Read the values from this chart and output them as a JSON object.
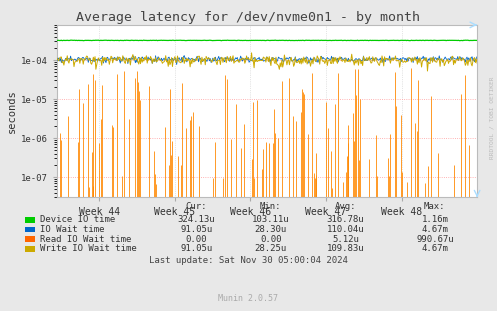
{
  "title": "Average latency for /dev/nvme0n1 - by month",
  "ylabel": "seconds",
  "bg_color": "#e8e8e8",
  "plot_bg_color": "#ffffff",
  "rrdtool_label": "RRDTOOL / TOBI OETIKER",
  "munin_label": "Munin 2.0.57",
  "xticklabels": [
    "Week 44",
    "Week 45",
    "Week 46",
    "Week 47",
    "Week 48"
  ],
  "ytick_labels": [
    "1e-07",
    "1e-06",
    "1e-05",
    "1e-04"
  ],
  "ytick_values": [
    1e-07,
    1e-06,
    1e-05,
    0.0001
  ],
  "legend": [
    {
      "label": "Device IO time",
      "color": "#00cc00"
    },
    {
      "label": "IO Wait time",
      "color": "#0066cc"
    },
    {
      "label": "Read IO Wait time",
      "color": "#ff6600"
    },
    {
      "label": "Write IO Wait time",
      "color": "#ccaa00"
    }
  ],
  "legend_stats": [
    {
      "cur": "324.13u",
      "min": "103.11u",
      "avg": "316.78u",
      "max": "1.16m"
    },
    {
      "cur": "91.05u",
      "min": "28.30u",
      "avg": "110.04u",
      "max": "4.67m"
    },
    {
      "cur": "0.00",
      "min": "0.00",
      "avg": "5.12u",
      "max": "990.67u"
    },
    {
      "cur": "91.05u",
      "min": "28.25u",
      "avg": "109.83u",
      "max": "4.67m"
    }
  ],
  "last_update": "Last update: Sat Nov 30 05:00:04 2024",
  "device_io_level": 0.00032,
  "write_io_level": 0.0001,
  "io_wait_level": 0.000105
}
